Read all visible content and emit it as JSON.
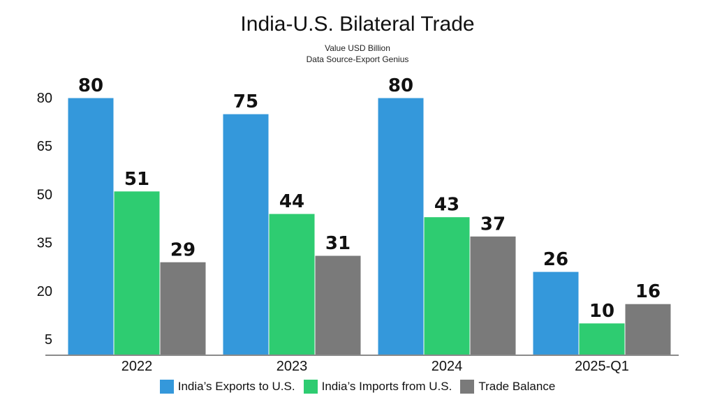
{
  "chart_data": {
    "type": "bar",
    "title": "India-U.S. Bilateral Trade",
    "subtitle": [
      "Value USD Billion",
      "Data Source-Export Genius"
    ],
    "categories": [
      "2022",
      "2023",
      "2024",
      "2025-Q1"
    ],
    "series": [
      {
        "name": "India’s Exports to U.S.",
        "color": "#3498db",
        "values": [
          80,
          75,
          80,
          26
        ]
      },
      {
        "name": "India’s Imports from U.S.",
        "color": "#2ecc71",
        "values": [
          51,
          44,
          43,
          10
        ]
      },
      {
        "name": "Trade Balance",
        "color": "#7a7a7a",
        "values": [
          29,
          31,
          37,
          16
        ]
      }
    ],
    "yticks": [
      5,
      20,
      35,
      50,
      65,
      80
    ],
    "ylim": [
      0,
      80
    ],
    "xlabel": "",
    "ylabel": "",
    "grid": false,
    "legend_position": "bottom"
  }
}
